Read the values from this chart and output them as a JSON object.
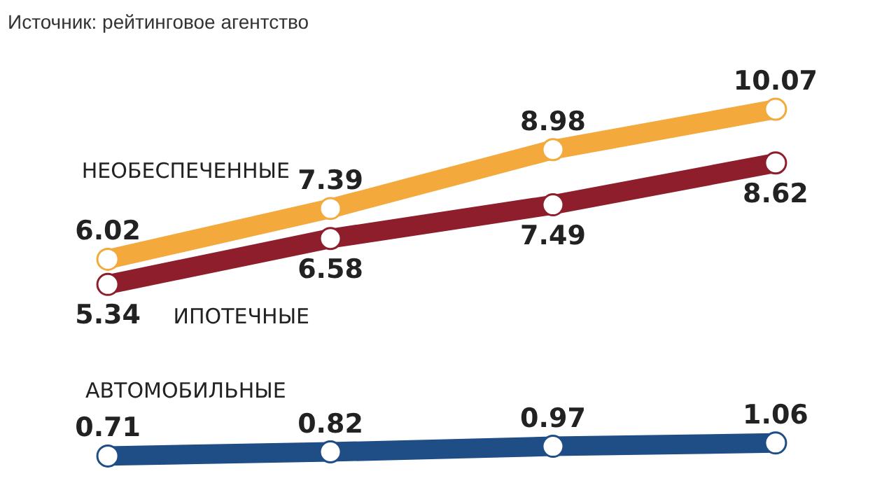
{
  "chart_data": {
    "type": "line",
    "categories": [
      null,
      null,
      null,
      null
    ],
    "series": [
      {
        "name": "НЕОБЕСПЕЧЕННЫЕ",
        "color": "#f3a93c",
        "values": [
          6.02,
          7.39,
          8.98,
          10.07
        ]
      },
      {
        "name": "ИПОТЕЧНЫЕ",
        "color": "#8e1e2c",
        "values": [
          5.34,
          6.58,
          7.49,
          8.62
        ]
      },
      {
        "name": "АВТОМОБИЛЬНЫЕ",
        "color": "#1f4e87",
        "values": [
          0.71,
          0.82,
          0.97,
          1.06
        ]
      }
    ],
    "data_labels": true,
    "marker": "circle",
    "legend": false,
    "grid": false,
    "annotations": [
      "Источник: рейтинговое агентство"
    ]
  }
}
